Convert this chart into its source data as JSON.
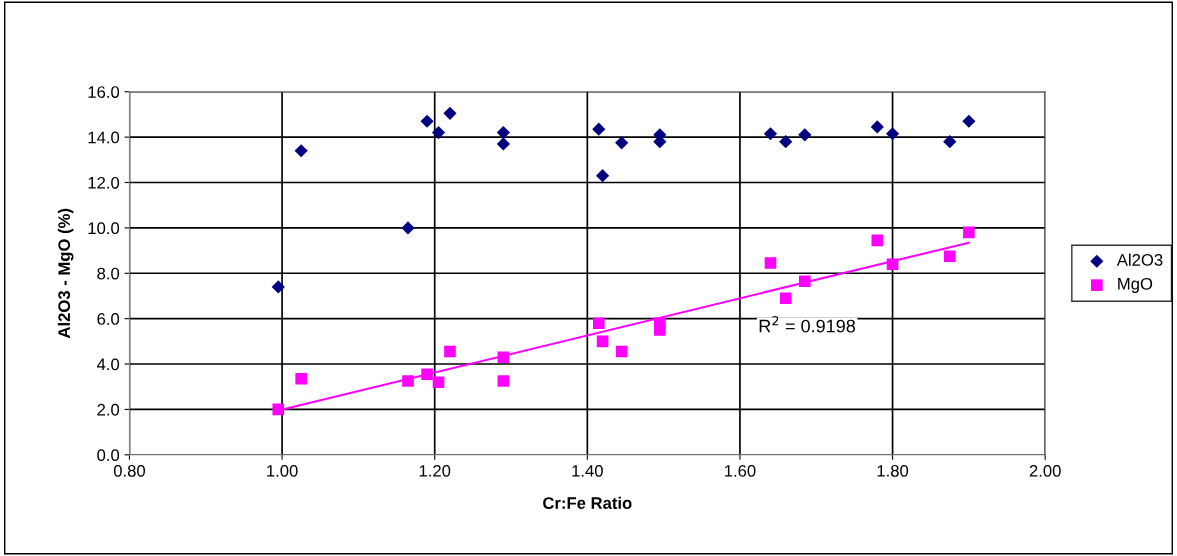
{
  "chart_data": {
    "type": "scatter",
    "xlabel": "Cr:Fe Ratio",
    "ylabel": "Al2O3 - MgO (%)",
    "x": [
      0.995,
      1.025,
      1.165,
      1.19,
      1.205,
      1.22,
      1.29,
      1.29,
      1.415,
      1.42,
      1.445,
      1.495,
      1.495,
      1.64,
      1.66,
      1.685,
      1.78,
      1.8,
      1.875,
      1.9
    ],
    "series": [
      {
        "name": "Al2O3",
        "color": "#000080",
        "marker": "diamond",
        "values": [
          7.4,
          13.4,
          10.0,
          14.7,
          14.2,
          15.05,
          14.2,
          13.7,
          14.35,
          12.3,
          13.75,
          14.1,
          13.8,
          14.15,
          13.8,
          14.1,
          14.45,
          14.15,
          13.8,
          14.7
        ]
      },
      {
        "name": "MgO",
        "color": "#ff00ff",
        "marker": "square",
        "values": [
          2.0,
          3.35,
          3.25,
          3.55,
          3.2,
          4.55,
          4.3,
          3.25,
          5.8,
          5.0,
          4.55,
          5.8,
          5.5,
          8.45,
          6.9,
          7.65,
          9.45,
          8.4,
          8.75,
          9.8
        ]
      },
      {
        "type": "line",
        "color": "#ff00ff",
        "x": [
          0.995,
          1.9
        ],
        "values": [
          1.95,
          9.35
        ]
      }
    ],
    "annotations": [
      "R$^{2}$ = 0.9198"
    ],
    "xlim": [
      0.8,
      2.0
    ],
    "xticks": [
      {
        "value": 0.8,
        "label": "0.80"
      },
      {
        "value": 1.0,
        "label": "1.00"
      },
      {
        "value": 1.2,
        "label": "1.20"
      },
      {
        "value": 1.4,
        "label": "1.40"
      },
      {
        "value": 1.6,
        "label": "1.60"
      },
      {
        "value": 1.8,
        "label": "1.80"
      },
      {
        "value": 2.0,
        "label": "2.00"
      }
    ],
    "ylim": [
      0,
      16
    ],
    "yticks": [
      {
        "value": 0,
        "label": "0.0"
      },
      {
        "value": 2,
        "label": "2.0"
      },
      {
        "value": 4,
        "label": "4.0"
      },
      {
        "value": 6,
        "label": "6.0"
      },
      {
        "value": 8,
        "label": "8.0"
      },
      {
        "value": 10,
        "label": "10.0"
      },
      {
        "value": 12,
        "label": "12.0"
      },
      {
        "value": 14,
        "label": "14.0"
      },
      {
        "value": 16,
        "label": "16.0"
      }
    ],
    "grid": true,
    "legend": "right"
  }
}
